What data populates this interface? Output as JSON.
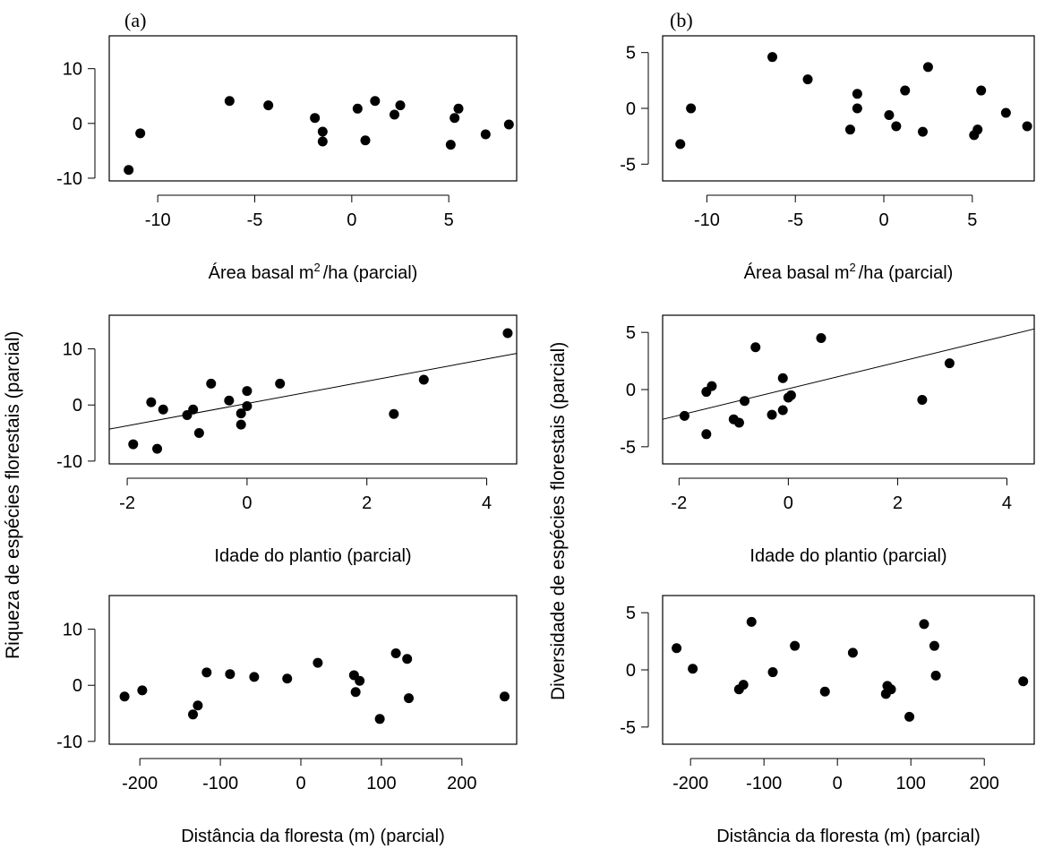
{
  "panels": [
    {
      "label": "(a)",
      "ylabel": "Riqueza de espécies florestais (parcial)"
    },
    {
      "label": "(b)",
      "ylabel": "Diversidade de espécies florestais (parcial)"
    }
  ],
  "xlabels": {
    "area": {
      "text": "Área basal m",
      "sup": "2",
      "tail": "/ha (parcial)"
    },
    "idade": "Idade do plantio (parcial)",
    "dist": "Distância da floresta (m) (parcial)"
  },
  "chart_data": [
    {
      "type": "scatter",
      "panel": "a",
      "xlabel": "Área basal m²/ha (parcial)",
      "ylabel": "Riqueza de espécies florestais (parcial)",
      "xlim": [
        -12.5,
        8.5
      ],
      "ylim": [
        -10.5,
        16
      ],
      "xticks": [
        -10,
        -5,
        0,
        5
      ],
      "yticks": [
        -10,
        0,
        10
      ],
      "x": [
        -11.5,
        -10.9,
        -6.3,
        -4.3,
        -1.9,
        -1.5,
        -1.5,
        0.3,
        0.7,
        1.2,
        2.2,
        2.5,
        5.1,
        5.3,
        5.5,
        6.9,
        8.1
      ],
      "y": [
        -8.5,
        -1.8,
        4.1,
        3.3,
        1.0,
        -1.5,
        -3.3,
        2.7,
        -3.1,
        4.1,
        1.6,
        3.3,
        -3.9,
        1.0,
        2.7,
        -2.0,
        -0.2
      ]
    },
    {
      "type": "scatter",
      "panel": "a",
      "xlabel": "Idade do plantio (parcial)",
      "ylabel": "Riqueza de espécies florestais (parcial)",
      "xlim": [
        -2.3,
        4.5
      ],
      "ylim": [
        -10.5,
        16
      ],
      "xticks": [
        -2,
        0,
        2,
        4
      ],
      "yticks": [
        -10,
        0,
        10
      ],
      "x": [
        -1.9,
        -1.6,
        -1.5,
        -1.4,
        -1.0,
        -0.9,
        -0.8,
        -0.6,
        -0.3,
        -0.1,
        -0.1,
        0.0,
        0.0,
        0.55,
        2.45,
        2.95,
        4.35
      ],
      "y": [
        -7.0,
        0.5,
        -7.8,
        -0.8,
        -1.8,
        -0.8,
        -5.0,
        3.8,
        0.8,
        -1.5,
        -3.5,
        2.5,
        -0.2,
        3.8,
        -1.6,
        4.5,
        12.8
      ],
      "fit_line": {
        "x": [
          -2.3,
          4.5
        ],
        "y": [
          -4.3,
          9.2
        ]
      }
    },
    {
      "type": "scatter",
      "panel": "a",
      "xlabel": "Distância da floresta (m) (parcial)",
      "ylabel": "Riqueza de espécies florestais (parcial)",
      "xlim": [
        -238,
        268
      ],
      "ylim": [
        -10.5,
        16
      ],
      "xticks": [
        -200,
        -100,
        0,
        100,
        200
      ],
      "yticks": [
        -10,
        0,
        10
      ],
      "x": [
        -219,
        -197,
        -134,
        -128,
        -117,
        -88,
        -58,
        -17,
        21,
        66,
        68,
        73,
        98,
        118,
        132,
        134,
        253
      ],
      "y": [
        -2.0,
        -0.9,
        -5.2,
        -3.6,
        2.3,
        2.0,
        1.5,
        1.2,
        4.0,
        1.8,
        -1.2,
        0.8,
        -6.0,
        5.7,
        4.7,
        -2.3,
        -2.0
      ]
    },
    {
      "type": "scatter",
      "panel": "b",
      "xlabel": "Área basal m²/ha (parcial)",
      "ylabel": "Diversidade de espécies florestais (parcial)",
      "xlim": [
        -12.5,
        8.5
      ],
      "ylim": [
        -6.5,
        6.5
      ],
      "xticks": [
        -10,
        -5,
        0,
        5
      ],
      "yticks": [
        -5,
        0,
        5
      ],
      "x": [
        -11.5,
        -10.9,
        -6.3,
        -4.3,
        -1.9,
        -1.5,
        -1.5,
        0.3,
        0.7,
        1.2,
        2.2,
        2.5,
        5.1,
        5.3,
        5.5,
        6.9,
        8.1
      ],
      "y": [
        -3.2,
        0.0,
        4.6,
        2.6,
        -1.9,
        1.3,
        0.0,
        -0.6,
        -1.6,
        1.6,
        -2.1,
        3.7,
        -2.4,
        -1.9,
        1.6,
        -0.4,
        -1.6
      ]
    },
    {
      "type": "scatter",
      "panel": "b",
      "xlabel": "Idade do plantio (parcial)",
      "ylabel": "Diversidade de espécies florestais (parcial)",
      "xlim": [
        -2.3,
        4.5
      ],
      "ylim": [
        -6.5,
        6.5
      ],
      "xticks": [
        -2,
        0,
        2,
        4
      ],
      "yticks": [
        -5,
        0,
        5
      ],
      "x": [
        -1.9,
        -1.5,
        -1.4,
        -1.5,
        -1.0,
        -0.9,
        -0.8,
        -0.6,
        -0.3,
        -0.1,
        -0.1,
        0.0,
        0.05,
        0.6,
        2.45,
        2.95
      ],
      "y": [
        -2.3,
        -0.2,
        0.3,
        -3.9,
        -2.6,
        -2.9,
        -1.0,
        3.7,
        -2.2,
        -1.8,
        1.0,
        -0.7,
        -0.5,
        4.5,
        -0.9,
        2.3
      ],
      "fit_line": {
        "x": [
          -2.3,
          4.5
        ],
        "y": [
          -2.6,
          5.3
        ]
      }
    },
    {
      "type": "scatter",
      "panel": "b",
      "xlabel": "Distância da floresta (m) (parcial)",
      "ylabel": "Diversidade de espécies florestais (parcial)",
      "xlim": [
        -238,
        268
      ],
      "ylim": [
        -6.5,
        6.5
      ],
      "xticks": [
        -200,
        -100,
        0,
        100,
        200
      ],
      "yticks": [
        -5,
        0,
        5
      ],
      "x": [
        -219,
        -197,
        -134,
        -128,
        -117,
        -88,
        -58,
        -17,
        21,
        66,
        68,
        73,
        98,
        118,
        132,
        134,
        253
      ],
      "y": [
        1.9,
        0.1,
        -1.7,
        -1.3,
        4.2,
        -0.2,
        2.1,
        -1.9,
        1.5,
        -2.1,
        -1.4,
        -1.7,
        -4.1,
        4.0,
        2.1,
        -0.5,
        -1.0
      ]
    }
  ]
}
